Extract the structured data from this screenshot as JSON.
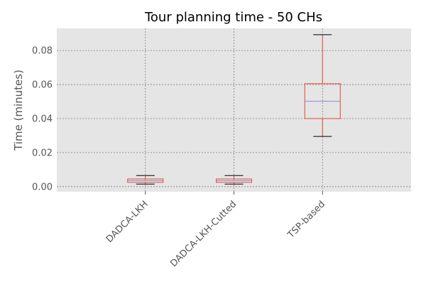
{
  "chart_data": {
    "type": "box",
    "title": "Tour planning time - 50 CHs",
    "xlabel": "",
    "ylabel": "Time (minutes)",
    "ylim": [
      -0.003,
      0.093
    ],
    "yticks": [
      0.0,
      0.02,
      0.04,
      0.06,
      0.08
    ],
    "ytick_labels": [
      "0.00",
      "0.02",
      "0.04",
      "0.06",
      "0.08"
    ],
    "grid": true,
    "categories": [
      "DADCA-LKH",
      "DADCA-LKH-Cutted",
      "TSP-based"
    ],
    "boxes": [
      {
        "whislo": 0.0015,
        "q1": 0.0025,
        "med": 0.0035,
        "q3": 0.0045,
        "whishi": 0.0065
      },
      {
        "whislo": 0.0015,
        "q1": 0.0025,
        "med": 0.0035,
        "q3": 0.0045,
        "whishi": 0.0065
      },
      {
        "whislo": 0.0295,
        "q1": 0.04,
        "med": 0.0502,
        "q3": 0.0605,
        "whishi": 0.0893
      }
    ],
    "colors": {
      "background": "#e5e5e5",
      "grid": "#7f7f7f",
      "box": "#e24a33",
      "median": "#988ed5",
      "whisker_cap": "#000000",
      "text": "#555555"
    }
  }
}
